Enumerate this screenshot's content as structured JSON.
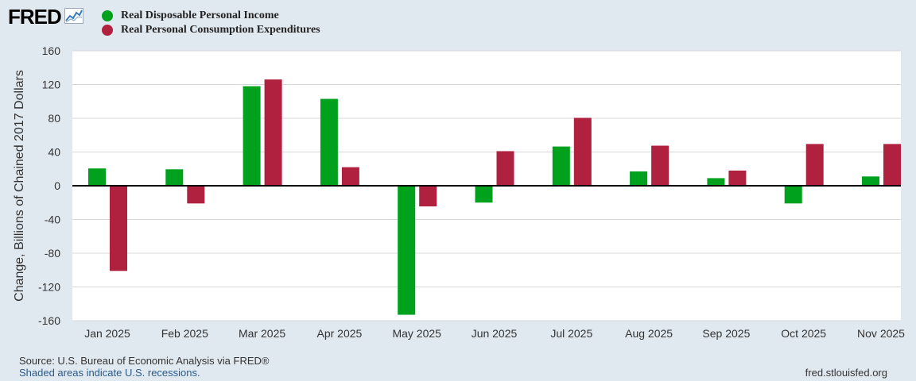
{
  "header": {
    "logo_text": "FRED",
    "logo_icon": "trend-line-icon"
  },
  "legend": {
    "items": [
      {
        "label": "Real Disposable Personal Income",
        "color": "#00a11d"
      },
      {
        "label": "Real Personal Consumption Expenditures",
        "color": "#b0213f"
      }
    ]
  },
  "footer": {
    "source": "Source: U.S. Bureau of Economic Analysis via FRED®",
    "recessions": "Shaded areas indicate U.S. recessions.",
    "site": "fred.stlouisfed.org"
  },
  "chart_data": {
    "type": "bar",
    "ylabel": "Change, Billions of Chained 2017 Dollars",
    "ylim": [
      -160,
      160
    ],
    "yticks": [
      160,
      120,
      80,
      40,
      0,
      -40,
      -80,
      -120,
      -160
    ],
    "grid": true,
    "categories": [
      "Jan 2025",
      "Feb 2025",
      "Mar 2025",
      "Apr 2025",
      "May 2025",
      "Jun 2025",
      "Jul 2025",
      "Aug 2025",
      "Sep 2025",
      "Oct 2025",
      "Nov 2025"
    ],
    "series": [
      {
        "name": "Real Disposable Personal Income",
        "color": "#00a11d",
        "values": [
          20.5,
          19.5,
          118,
          103,
          -153,
          -20,
          46.5,
          17,
          9,
          -21,
          11
        ]
      },
      {
        "name": "Real Personal Consumption Expenditures",
        "color": "#b0213f",
        "values": [
          -101,
          -21,
          126,
          22,
          -24.5,
          41,
          80.5,
          47.5,
          18,
          49.5,
          49.5
        ]
      }
    ]
  }
}
